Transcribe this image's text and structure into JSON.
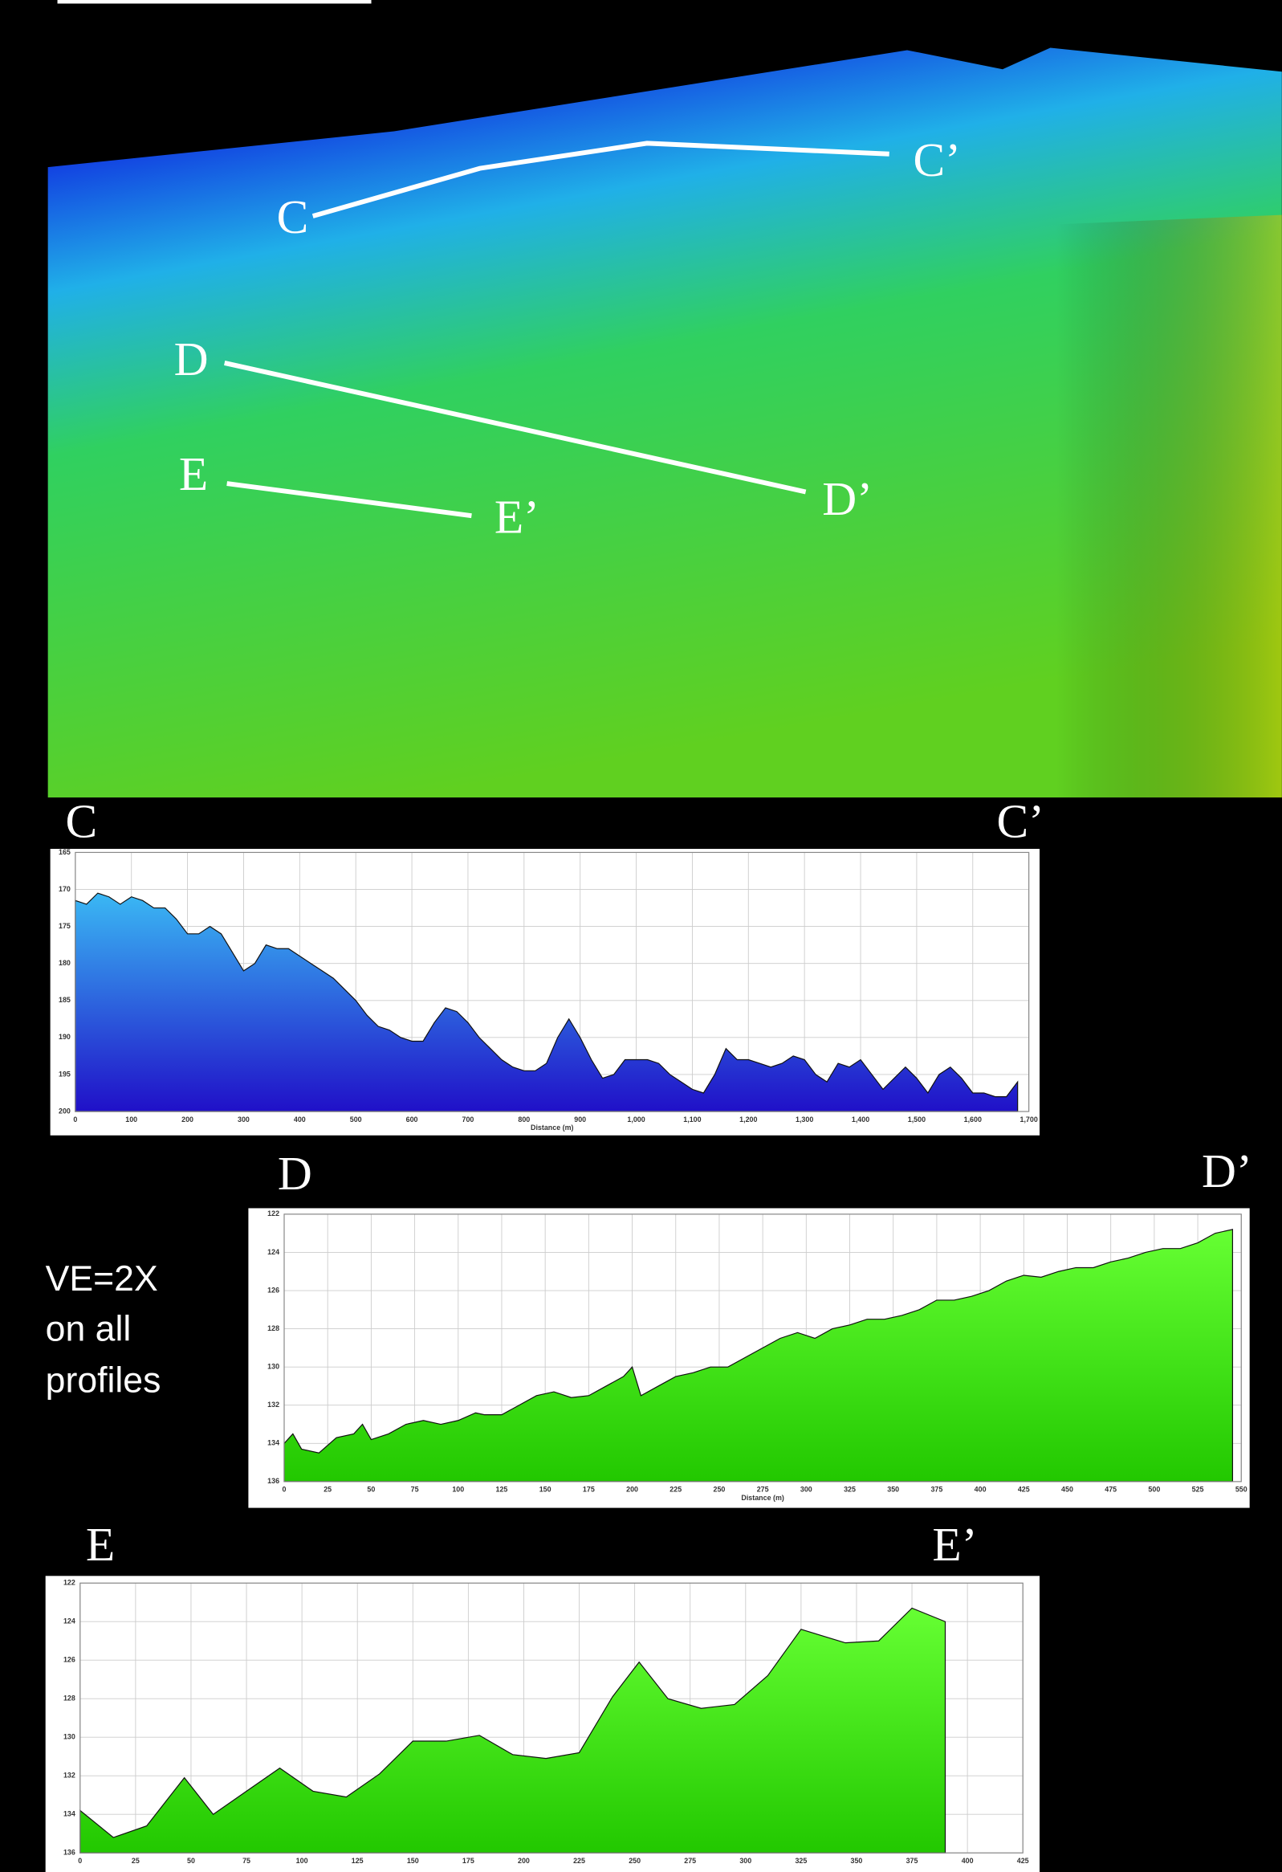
{
  "map": {
    "labels": [
      "C",
      "C’",
      "D",
      "D’",
      "E",
      "E’"
    ]
  },
  "note": [
    "VE=2X",
    "on all",
    "profiles"
  ],
  "chart_data": [
    {
      "type": "area",
      "start_label": "C",
      "end_label": "C’",
      "x_label": "Distance (m)",
      "y_inverted": true,
      "grid": true,
      "gradient": [
        "#3ab8f4",
        "#2010c8"
      ],
      "x": [
        0,
        20,
        40,
        60,
        80,
        100,
        120,
        140,
        160,
        180,
        200,
        220,
        240,
        260,
        280,
        300,
        320,
        340,
        360,
        380,
        400,
        420,
        440,
        460,
        480,
        500,
        520,
        540,
        560,
        580,
        600,
        620,
        640,
        660,
        680,
        700,
        720,
        740,
        760,
        780,
        800,
        820,
        840,
        860,
        880,
        900,
        920,
        940,
        960,
        980,
        1000,
        1020,
        1040,
        1060,
        1080,
        1100,
        1120,
        1140,
        1160,
        1180,
        1200,
        1220,
        1240,
        1260,
        1280,
        1300,
        1320,
        1340,
        1360,
        1380,
        1400,
        1420,
        1440,
        1460,
        1480,
        1500,
        1520,
        1540,
        1560,
        1580,
        1600,
        1620,
        1640,
        1660,
        1680
      ],
      "values": [
        171.5,
        172,
        170.5,
        171,
        172,
        171,
        171.5,
        172.5,
        172.5,
        174,
        176,
        176,
        175,
        176,
        178.5,
        181,
        180,
        177.5,
        178,
        178,
        179,
        180,
        181,
        182,
        183.5,
        185,
        187,
        188.5,
        189,
        190,
        190.5,
        190.5,
        188,
        186,
        186.5,
        188,
        190,
        191.5,
        193,
        194,
        194.5,
        194.5,
        193.5,
        190,
        187.5,
        190,
        193,
        195.5,
        195,
        193,
        193,
        193,
        193.5,
        195,
        196,
        197,
        197.5,
        195,
        191.5,
        193,
        193,
        193.5,
        194,
        193.5,
        192.5,
        193,
        195,
        196,
        193.5,
        194,
        193,
        195,
        197,
        195.5,
        194,
        195.5,
        197.5,
        195,
        194,
        195.5,
        197.5,
        197.5,
        198,
        198,
        196
      ],
      "xlim": [
        0,
        1700
      ],
      "ylim": [
        165,
        200
      ],
      "xticks": [
        0,
        100,
        200,
        300,
        400,
        500,
        600,
        700,
        800,
        900,
        {
          "value": 1000,
          "label": "1,000"
        },
        {
          "value": 1100,
          "label": "1,100"
        },
        {
          "value": 1200,
          "label": "1,200"
        },
        {
          "value": 1300,
          "label": "1,300"
        },
        {
          "value": 1400,
          "label": "1,400"
        },
        {
          "value": 1500,
          "label": "1,500"
        },
        {
          "value": 1600,
          "label": "1,600"
        },
        {
          "value": 1700,
          "label": "1,700"
        }
      ],
      "yticks": [
        165,
        170,
        175,
        180,
        185,
        190,
        195,
        200
      ]
    },
    {
      "type": "area",
      "start_label": "D",
      "end_label": "D’",
      "x_label": "Distance (m)",
      "y_inverted": true,
      "grid": true,
      "gradient": [
        "#66ff33",
        "#22c800"
      ],
      "x": [
        0,
        5,
        10,
        20,
        30,
        40,
        45,
        50,
        60,
        70,
        80,
        90,
        100,
        110,
        115,
        125,
        135,
        145,
        155,
        165,
        175,
        185,
        195,
        200,
        205,
        215,
        225,
        235,
        245,
        255,
        265,
        275,
        285,
        295,
        305,
        315,
        325,
        335,
        345,
        355,
        365,
        375,
        385,
        395,
        405,
        415,
        425,
        435,
        445,
        455,
        465,
        475,
        485,
        495,
        505,
        515,
        525,
        535,
        545
      ],
      "values": [
        134,
        133.5,
        134.3,
        134.5,
        133.7,
        133.5,
        133,
        133.8,
        133.5,
        133,
        132.8,
        133,
        132.8,
        132.4,
        132.5,
        132.5,
        132,
        131.5,
        131.3,
        131.6,
        131.5,
        131,
        130.5,
        130,
        131.5,
        131,
        130.5,
        130.3,
        130,
        130,
        129.5,
        129,
        128.5,
        128.2,
        128.5,
        128,
        127.8,
        127.5,
        127.5,
        127.3,
        127,
        126.5,
        126.5,
        126.3,
        126,
        125.5,
        125.2,
        125.3,
        125,
        124.8,
        124.8,
        124.5,
        124.3,
        124,
        123.8,
        123.8,
        123.5,
        123,
        122.8
      ],
      "xlim": [
        0,
        550
      ],
      "ylim": [
        122,
        136
      ],
      "xticks": [
        0,
        25,
        50,
        75,
        100,
        125,
        150,
        175,
        200,
        225,
        250,
        275,
        300,
        325,
        350,
        375,
        400,
        425,
        450,
        475,
        500,
        525,
        550
      ],
      "yticks": [
        122,
        124,
        126,
        128,
        130,
        132,
        134,
        136
      ]
    },
    {
      "type": "area",
      "start_label": "E",
      "end_label": "E’",
      "y_inverted": true,
      "grid": true,
      "gradient": [
        "#66ff33",
        "#22c800"
      ],
      "x": [
        0,
        15,
        30,
        47,
        60,
        75,
        90,
        105,
        120,
        135,
        150,
        165,
        180,
        195,
        210,
        225,
        240,
        252,
        265,
        280,
        295,
        310,
        325,
        345,
        360,
        375,
        390
      ],
      "values": [
        133.8,
        135.2,
        134.6,
        132.1,
        134,
        132.8,
        131.6,
        132.8,
        133.1,
        131.9,
        130.2,
        130.2,
        129.9,
        130.9,
        131.1,
        130.8,
        127.9,
        126.1,
        128,
        128.5,
        128.3,
        126.8,
        124.4,
        125.1,
        125,
        123.3,
        124
      ],
      "xlim": [
        0,
        425
      ],
      "ylim": [
        122,
        136
      ],
      "xticks": [
        0,
        25,
        50,
        75,
        100,
        125,
        150,
        175,
        200,
        225,
        250,
        275,
        300,
        325,
        350,
        375,
        400,
        425
      ],
      "yticks": [
        122,
        124,
        126,
        128,
        130,
        132,
        134,
        136
      ]
    }
  ]
}
